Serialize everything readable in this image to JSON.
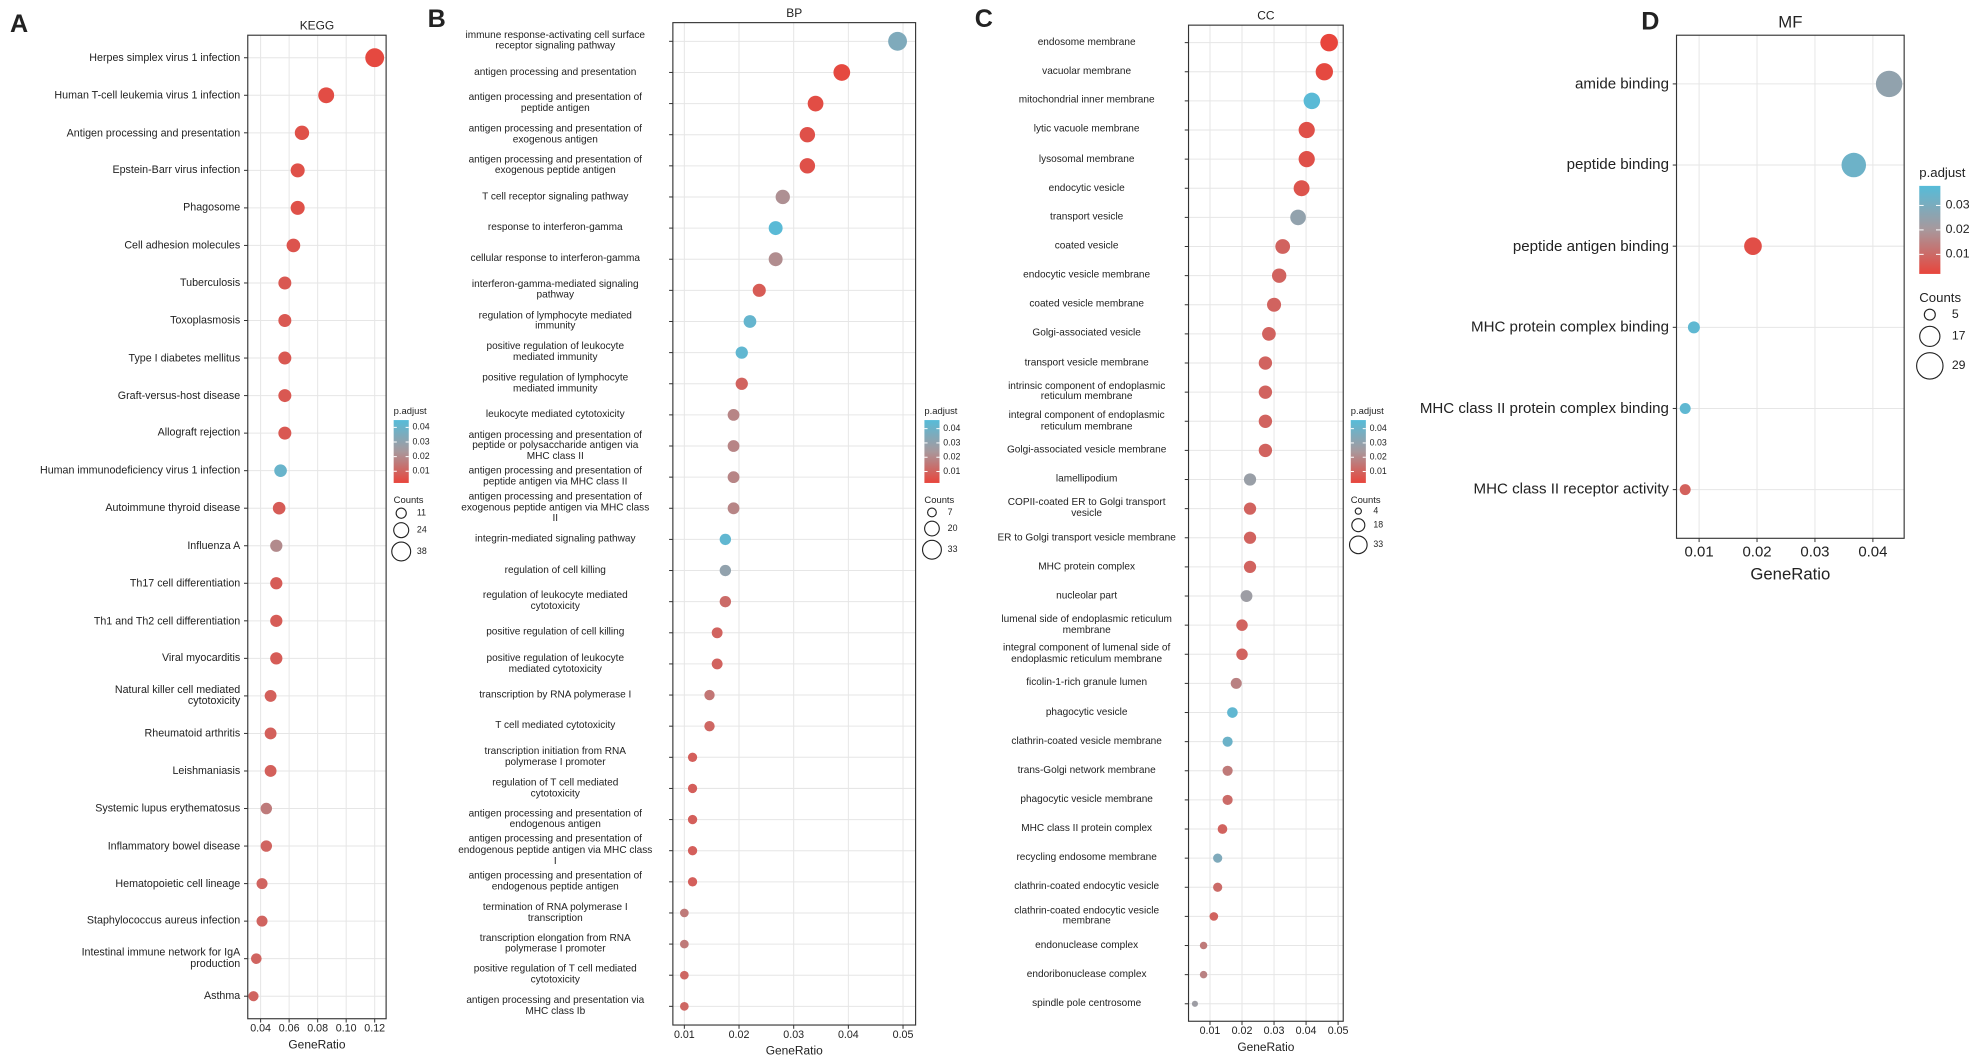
{
  "chart_data": [
    {
      "type": "dot",
      "panel_label": "A",
      "title": "KEGG",
      "xlabel": "GeneRatio",
      "categories": [
        "Herpes simplex virus 1 infection",
        "Human T-cell leukemia virus 1 infection",
        "Antigen processing and presentation",
        "Epstein-Barr virus infection",
        "Phagosome",
        "Cell adhesion molecules",
        "Tuberculosis",
        "Toxoplasmosis",
        "Type I diabetes mellitus",
        "Graft-versus-host disease",
        "Allograft rejection",
        "Human immunodeficiency virus 1 infection",
        "Autoimmune thyroid disease",
        "Influenza A",
        "Th17 cell differentiation",
        "Th1 and Th2 cell differentiation",
        "Viral myocarditis",
        "Natural killer cell mediated\ncytotoxicity",
        "Rheumatoid arthritis",
        "Leishmaniasis",
        "Systemic lupus erythematosus",
        "Inflammatory bowel disease",
        "Hematopoietic cell lineage",
        "Staphylococcus aureus infection",
        "Intestinal immune network for IgA\nproduction",
        "Asthma"
      ],
      "values": [
        0.12,
        0.086,
        0.069,
        0.066,
        0.066,
        0.063,
        0.057,
        0.057,
        0.057,
        0.057,
        0.057,
        0.054,
        0.053,
        0.051,
        0.051,
        0.051,
        0.051,
        0.047,
        0.047,
        0.047,
        0.044,
        0.044,
        0.041,
        0.041,
        0.037,
        0.035
      ],
      "sizes": [
        38,
        27,
        22,
        21,
        21,
        20,
        18,
        18,
        18,
        18,
        18,
        17,
        17,
        16,
        16,
        16,
        16,
        15,
        15,
        15,
        14,
        14,
        13,
        13,
        12,
        11
      ],
      "padj": [
        0.003,
        0.004,
        0.005,
        0.005,
        0.005,
        0.006,
        0.007,
        0.007,
        0.007,
        0.007,
        0.007,
        0.04,
        0.008,
        0.02,
        0.008,
        0.008,
        0.008,
        0.009,
        0.009,
        0.009,
        0.016,
        0.01,
        0.01,
        0.01,
        0.01,
        0.01
      ],
      "xlim": [
        0.031,
        0.128
      ],
      "xticks": [
        0.04,
        0.06,
        0.08,
        {
          "value": 0.1,
          "label": "0.10"
        },
        0.12
      ],
      "grid": true,
      "colors": [
        "#e8453c",
        "#a8989c",
        "#56bcd9"
      ],
      "color_legend": {
        "title": "p.adjust",
        "lim": [
          0.002,
          0.045
        ],
        "ticks": [
          0.04,
          0.03,
          0.02,
          0.01
        ]
      },
      "size_legend": {
        "title": "Counts",
        "values": [
          11,
          24,
          38
        ]
      }
    },
    {
      "type": "dot",
      "panel_label": "B",
      "title": "BP",
      "xlabel": "GeneRatio",
      "categories": [
        "immune response-activating cell surface\nreceptor signaling pathway",
        "antigen processing and presentation",
        "antigen processing and presentation of\npeptide antigen",
        "antigen processing and presentation of\nexogenous antigen",
        "antigen processing and presentation of\nexogenous peptide antigen",
        "T cell receptor signaling pathway",
        "response to interferon-gamma",
        "cellular response to interferon-gamma",
        "interferon-gamma-mediated signaling\npathway",
        "regulation of lymphocyte mediated\nimmunity",
        "positive regulation of leukocyte\nmediated immunity",
        "positive regulation of lymphocyte\nmediated immunity",
        "leukocyte mediated cytotoxicity",
        "antigen processing and presentation of\npeptide or polysaccharide antigen via\nMHC class II",
        "antigen processing and presentation of\npeptide antigen via MHC class II",
        "antigen processing and presentation of\nexogenous peptide antigen via MHC class\nII",
        "integrin-mediated signaling pathway",
        "regulation of cell killing",
        "regulation of leukocyte mediated\ncytotoxicity",
        "positive regulation of cell killing",
        "positive regulation of leukocyte\nmediated cytotoxicity",
        "transcription by RNA polymerase I",
        "T cell mediated cytotoxicity",
        "transcription initiation from RNA\npolymerase I promoter",
        "regulation of T cell mediated\ncytotoxicity",
        "antigen processing and presentation of\nendogenous antigen",
        "antigen processing and presentation of\nendogenous peptide antigen via MHC class\nI",
        "antigen processing and presentation of\nendogenous peptide antigen",
        "termination of RNA polymerase I\ntranscription",
        "transcription elongation from RNA\npolymerase I promoter",
        "positive regulation of T cell mediated\ncytotoxicity",
        "antigen processing and presentation via\nMHC class Ib"
      ],
      "values": [
        0.049,
        0.0388,
        0.034,
        0.0325,
        0.0325,
        0.028,
        0.0267,
        0.0267,
        0.0237,
        0.022,
        0.0205,
        0.0205,
        0.019,
        0.019,
        0.019,
        0.019,
        0.0175,
        0.0175,
        0.0175,
        0.016,
        0.016,
        0.0146,
        0.0146,
        0.0115,
        0.0115,
        0.0115,
        0.0115,
        0.0115,
        0.01,
        0.01,
        0.01,
        0.01
      ],
      "sizes": [
        33,
        26,
        23,
        22,
        22,
        19,
        18,
        18,
        16,
        15,
        14,
        14,
        13,
        13,
        13,
        13,
        12,
        12,
        12,
        11,
        11,
        10,
        10,
        8,
        8,
        8,
        8,
        8,
        7,
        7,
        7,
        7
      ],
      "padj": [
        0.035,
        0.003,
        0.004,
        0.005,
        0.005,
        0.022,
        0.045,
        0.021,
        0.008,
        0.042,
        0.043,
        0.01,
        0.019,
        0.019,
        0.019,
        0.019,
        0.043,
        0.03,
        0.012,
        0.01,
        0.01,
        0.015,
        0.011,
        0.009,
        0.009,
        0.009,
        0.009,
        0.009,
        0.016,
        0.016,
        0.011,
        0.011
      ],
      "xlim": [
        0.0079,
        0.0523
      ],
      "xticks": [
        0.01,
        0.02,
        0.03,
        0.04,
        0.05
      ],
      "grid": true,
      "colors": [
        "#e8453c",
        "#a8989c",
        "#56bcd9"
      ],
      "color_legend": {
        "title": "p.adjust",
        "lim": [
          0.002,
          0.046
        ],
        "ticks": [
          0.04,
          0.03,
          0.02,
          0.01
        ]
      },
      "size_legend": {
        "title": "Counts",
        "values": [
          7,
          20,
          33
        ]
      }
    },
    {
      "type": "dot",
      "panel_label": "C",
      "title": "CC",
      "xlabel": "GeneRatio",
      "categories": [
        "endosome membrane",
        "vacuolar membrane",
        "mitochondrial inner membrane",
        "lytic vacuole membrane",
        "lysosomal membrane",
        "endocytic vesicle",
        "transport vesicle",
        "coated vesicle",
        "endocytic vesicle membrane",
        "coated vesicle membrane",
        "Golgi-associated vesicle",
        "transport vesicle membrane",
        "intrinsic component of endoplasmic\nreticulum membrane",
        "integral component of endoplasmic\nreticulum membrane",
        "Golgi-associated vesicle membrane",
        "lamellipodium",
        "COPII-coated ER to Golgi transport\nvesicle",
        "ER to Golgi transport vesicle membrane",
        "MHC protein complex",
        "nucleolar part",
        "lumenal side of endoplasmic reticulum\nmembrane",
        "integral component of lumenal side of\nendoplasmic reticulum membrane",
        "ficolin-1-rich granule lumen",
        "phagocytic vesicle",
        "clathrin-coated vesicle membrane",
        "trans-Golgi network membrane",
        "phagocytic vesicle membrane",
        "MHC class II protein complex",
        "recycling endosome membrane",
        "clathrin-coated endocytic vesicle",
        "clathrin-coated endocytic vesicle\nmembrane",
        "endonuclease complex",
        "endoribonuclease complex",
        "spindle pole centrosome"
      ],
      "values": [
        0.0472,
        0.0457,
        0.0418,
        0.0402,
        0.0402,
        0.0386,
        0.0375,
        0.0327,
        0.0316,
        0.03,
        0.0284,
        0.0273,
        0.0273,
        0.0273,
        0.0273,
        0.0225,
        0.0225,
        0.0225,
        0.0225,
        0.0214,
        0.02,
        0.02,
        0.0182,
        0.017,
        0.0155,
        0.0155,
        0.0155,
        0.0139,
        0.0124,
        0.0124,
        0.0112,
        0.008,
        0.008,
        0.0053
      ],
      "sizes": [
        33,
        32,
        29,
        28,
        28,
        27,
        26,
        23,
        22,
        21,
        20,
        19,
        19,
        19,
        19,
        16,
        16,
        16,
        16,
        15,
        14,
        14,
        13,
        12,
        11,
        11,
        11,
        10,
        9,
        9,
        8,
        6,
        6,
        4
      ],
      "padj": [
        0.002,
        0.003,
        0.045,
        0.005,
        0.005,
        0.006,
        0.03,
        0.01,
        0.01,
        0.01,
        0.01,
        0.01,
        0.01,
        0.01,
        0.01,
        0.028,
        0.01,
        0.01,
        0.01,
        0.027,
        0.01,
        0.01,
        0.018,
        0.043,
        0.04,
        0.016,
        0.012,
        0.01,
        0.035,
        0.012,
        0.01,
        0.016,
        0.018,
        0.027
      ],
      "xlim": [
        0.0033,
        0.0516
      ],
      "xticks": [
        0.01,
        0.02,
        0.03,
        0.04,
        0.05
      ],
      "grid": true,
      "colors": [
        "#e8453c",
        "#a8989c",
        "#56bcd9"
      ],
      "color_legend": {
        "title": "p.adjust",
        "lim": [
          0.002,
          0.046
        ],
        "ticks": [
          0.04,
          0.03,
          0.02,
          0.01
        ]
      },
      "size_legend": {
        "title": "Counts",
        "values": [
          4,
          18,
          33
        ]
      }
    },
    {
      "type": "dot",
      "panel_label": "D",
      "title": "MF",
      "xlabel": "GeneRatio",
      "categories": [
        "amide binding",
        "peptide binding",
        "peptide antigen binding",
        "MHC protein complex binding",
        "MHC class II protein complex binding",
        "MHC class II receptor activity"
      ],
      "values": [
        0.0428,
        0.0367,
        0.0193,
        0.0091,
        0.0076,
        0.0076
      ],
      "sizes": [
        29,
        25,
        13,
        6,
        5,
        5
      ],
      "padj": [
        0.025,
        0.033,
        0.004,
        0.036,
        0.036,
        0.008
      ],
      "xlim": [
        0.0061,
        0.0454
      ],
      "xticks": [
        0.01,
        0.02,
        0.03,
        0.04
      ],
      "grid": true,
      "colors": [
        "#e8453c",
        "#a8989c",
        "#56bcd9"
      ],
      "color_legend": {
        "title": "p.adjust",
        "lim": [
          0.002,
          0.038
        ],
        "ticks": [
          0.03,
          0.02,
          0.01
        ]
      },
      "size_legend": {
        "title": "Counts",
        "values": [
          5,
          17,
          29
        ]
      }
    }
  ]
}
